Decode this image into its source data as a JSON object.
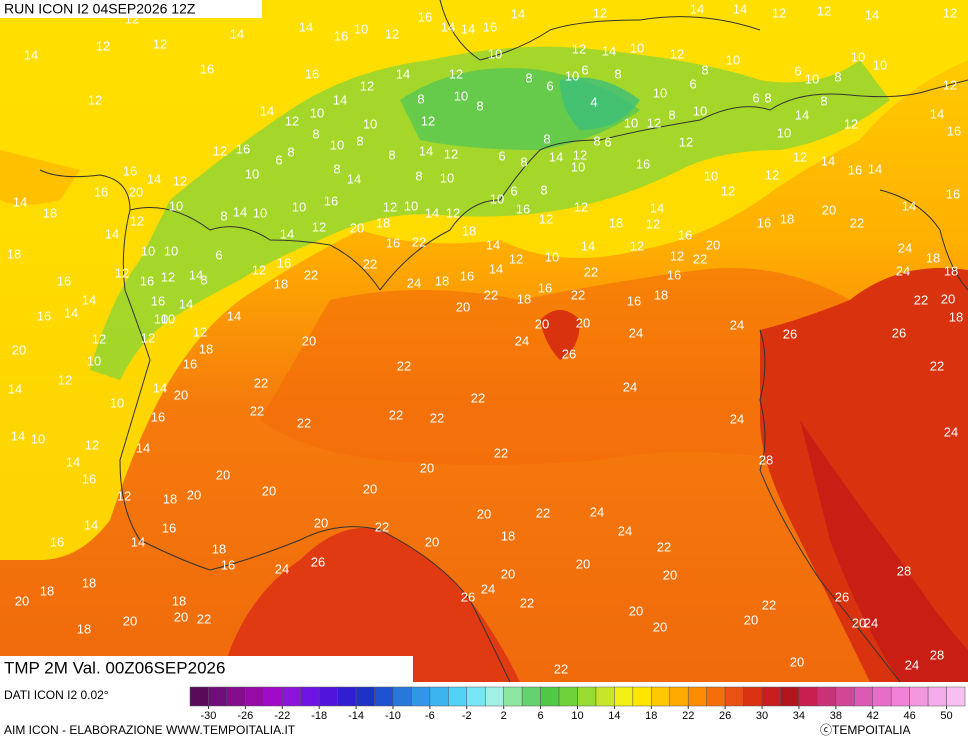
{
  "header": {
    "title": "RUN ICON I2 04SEP2026 12Z"
  },
  "map": {
    "labels": [
      16,
      14,
      14,
      16,
      14,
      12,
      14,
      14,
      12,
      12,
      14,
      12,
      12,
      12,
      14,
      14,
      16,
      10,
      12,
      10,
      12,
      14,
      10,
      12,
      10,
      10,
      10,
      14,
      12,
      16,
      16,
      12,
      14,
      12,
      8,
      6,
      10,
      6,
      8,
      8,
      6,
      10,
      8,
      12,
      12,
      14,
      12,
      10,
      14,
      8,
      10,
      8,
      12,
      10,
      8,
      4,
      10,
      6,
      10,
      8,
      6,
      14,
      8,
      12,
      14,
      16,
      12,
      16,
      6,
      8,
      10,
      8,
      8,
      14,
      12,
      6,
      8,
      8,
      14,
      12,
      8,
      6,
      10,
      12,
      8,
      12,
      10,
      16,
      10,
      12,
      14,
      14,
      16,
      20,
      14,
      12,
      10,
      8,
      14,
      10,
      8,
      10,
      12,
      16,
      14,
      18,
      16,
      12,
      10,
      8,
      14,
      10,
      10,
      12,
      16,
      12,
      10,
      14,
      12,
      10,
      6,
      16,
      8,
      12,
      12,
      18,
      14,
      12,
      12,
      16,
      18,
      20,
      22,
      14,
      16,
      14,
      10,
      10,
      6,
      14,
      20,
      18,
      16,
      22,
      18,
      14,
      14,
      12,
      16,
      20,
      24,
      18,
      18,
      16,
      12,
      16,
      12,
      14,
      8,
      12,
      16,
      22,
      18,
      22,
      24,
      18,
      16,
      14,
      12,
      10,
      22,
      12,
      22,
      16,
      24,
      18,
      16,
      14,
      14,
      16,
      14,
      10,
      10,
      14,
      12,
      18,
      20,
      22,
      18,
      16,
      22,
      16,
      18,
      22,
      20,
      18,
      20,
      12,
      12,
      20,
      20,
      20,
      24,
      24,
      26,
      24,
      26,
      26,
      12,
      10,
      16,
      22,
      22,
      14,
      14,
      20,
      10,
      16,
      22,
      22,
      22,
      22,
      24,
      24,
      22,
      14,
      10,
      12,
      14,
      22,
      20,
      22,
      14,
      16,
      28,
      24,
      20,
      18,
      20,
      20,
      20,
      12,
      14,
      16,
      20,
      22,
      20,
      22,
      24,
      24,
      18,
      20,
      16,
      14,
      18,
      16,
      24,
      26,
      22,
      20,
      20,
      20,
      18,
      18,
      20,
      18,
      24,
      26,
      22,
      28,
      26,
      18,
      20,
      20,
      22,
      20,
      22,
      20,
      20,
      20,
      24,
      20,
      22,
      24,
      28
    ]
  },
  "footer": {
    "variable": "TMP 2M Val. 00Z06SEP2026",
    "source": "DATI ICON I2 0.02°",
    "credit": "AIM ICON - ELABORAZIONE WWW.TEMPOITALIA.IT",
    "copyright": "ⓒTEMPOITALIA"
  },
  "colorbar": {
    "range": [
      -32,
      52
    ],
    "ticks": [
      -30,
      -26,
      -22,
      -18,
      -14,
      -10,
      -6,
      -2,
      2,
      6,
      10,
      14,
      18,
      22,
      26,
      30,
      34,
      38,
      42,
      46,
      50
    ],
    "colors": [
      "#5a0a5a",
      "#6e0e78",
      "#820e8c",
      "#960aa6",
      "#a00ac8",
      "#8c14dc",
      "#6e14e6",
      "#5014dc",
      "#321ed2",
      "#1e32c8",
      "#1e50d2",
      "#2878dc",
      "#3296e6",
      "#3cb4f0",
      "#50d2f5",
      "#78e6f5",
      "#a0f0e6",
      "#8ce6a0",
      "#64d26e",
      "#50c846",
      "#6ed23c",
      "#96dc32",
      "#c8e628",
      "#f0f014",
      "#ffe600",
      "#ffc800",
      "#ffaa00",
      "#ff8c00",
      "#f56e0a",
      "#eb5014",
      "#dc3214",
      "#c81e1e",
      "#b4141e",
      "#c81e50",
      "#c83278",
      "#d24696",
      "#dc5ab4",
      "#e66ec8",
      "#f082d7",
      "#f596e1",
      "#f5aaeb",
      "#f8c0f0"
    ]
  }
}
